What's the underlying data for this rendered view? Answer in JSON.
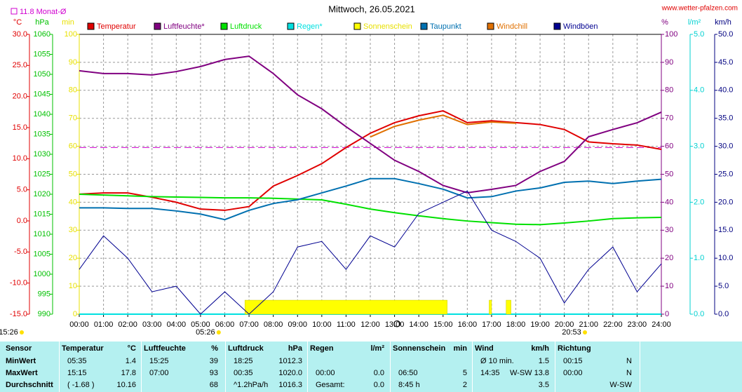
{
  "chart_data": {
    "type": "line",
    "title": "Mittwoch, 26.05.2021",
    "source": "www.wetter-pfalzen.com",
    "monthly_avg": {
      "label": "11.8 Monat-Ø",
      "value": 11.8,
      "axis": "temp",
      "color": "#d000d0"
    },
    "grid": true,
    "grid_axis": "min",
    "xlim": [
      0,
      24
    ],
    "xticks": [
      {
        "value": 0,
        "label": "00:00"
      },
      {
        "value": 1,
        "label": "01:00"
      },
      {
        "value": 2,
        "label": "02:00"
      },
      {
        "value": 3,
        "label": "03:00"
      },
      {
        "value": 4,
        "label": "04:00"
      },
      {
        "value": 5,
        "label": "05:00"
      },
      {
        "value": 6,
        "label": "06:00"
      },
      {
        "value": 7,
        "label": "07:00"
      },
      {
        "value": 8,
        "label": "08:00"
      },
      {
        "value": 9,
        "label": "09:00"
      },
      {
        "value": 10,
        "label": "10:00"
      },
      {
        "value": 11,
        "label": "11:00"
      },
      {
        "value": 12,
        "label": "12:00"
      },
      {
        "value": 13,
        "label": "13:00"
      },
      {
        "value": 14,
        "label": "14:00"
      },
      {
        "value": 15,
        "label": "15:00"
      },
      {
        "value": 16,
        "label": "16:00"
      },
      {
        "value": 17,
        "label": "17:00"
      },
      {
        "value": 18,
        "label": "18:00"
      },
      {
        "value": 19,
        "label": "19:00"
      },
      {
        "value": 20,
        "label": "20:00"
      },
      {
        "value": 21,
        "label": "21:00"
      },
      {
        "value": 22,
        "label": "22:00"
      },
      {
        "value": 23,
        "label": "23:00"
      },
      {
        "value": 24,
        "label": "24:00"
      }
    ],
    "x": [
      0,
      1,
      2,
      3,
      4,
      5,
      6,
      7,
      8,
      9,
      10,
      11,
      12,
      13,
      14,
      15,
      16,
      17,
      18,
      19,
      20,
      21,
      22,
      23,
      24
    ],
    "axes": {
      "temp": {
        "label": "°C",
        "color": "#e00000",
        "lim": [
          -15,
          30
        ],
        "ticks": [
          {
            "value": 30,
            "label": "30.0"
          },
          {
            "value": 25,
            "label": "25.0"
          },
          {
            "value": 20,
            "label": "20.0"
          },
          {
            "value": 15,
            "label": "15.0"
          },
          {
            "value": 10,
            "label": "10.0"
          },
          {
            "value": 5,
            "label": "5.0"
          },
          {
            "value": 0,
            "label": "0.0"
          },
          {
            "value": -5,
            "label": "-5.0"
          },
          {
            "value": -10,
            "label": "-10.0"
          },
          {
            "value": -15,
            "label": "-15.0"
          }
        ]
      },
      "pressure": {
        "label": "hPa",
        "color": "#00c000",
        "lim": [
          990,
          1060
        ],
        "ticks": [
          1060,
          1055,
          1050,
          1045,
          1040,
          1035,
          1030,
          1025,
          1020,
          1015,
          1010,
          1005,
          1000,
          995,
          990
        ]
      },
      "min": {
        "label": "min",
        "color": "#e8e000",
        "lim": [
          0,
          100
        ],
        "ticks": [
          100,
          90,
          80,
          70,
          60,
          50,
          40,
          30,
          20,
          10,
          0
        ]
      },
      "humidity": {
        "label": "%",
        "color": "#800080",
        "lim": [
          0,
          100
        ],
        "ticks": [
          100,
          90,
          80,
          70,
          60,
          50,
          40,
          30,
          20,
          10,
          0
        ]
      },
      "rain": {
        "label": "l/m²",
        "color": "#00d0d0",
        "lim": [
          0,
          5
        ],
        "ticks": [
          {
            "value": 5,
            "label": "5.0"
          },
          {
            "value": 4,
            "label": "4.0"
          },
          {
            "value": 3,
            "label": "3.0"
          },
          {
            "value": 2,
            "label": "2.0"
          },
          {
            "value": 1,
            "label": "1.0"
          },
          {
            "value": 0,
            "label": "0.0"
          }
        ]
      },
      "wind": {
        "label": "km/h",
        "color": "#000080",
        "lim": [
          0,
          50
        ],
        "ticks": [
          {
            "value": 50,
            "label": "50.0"
          },
          {
            "value": 45,
            "label": "45.0"
          },
          {
            "value": 40,
            "label": "40.0"
          },
          {
            "value": 35,
            "label": "35.0"
          },
          {
            "value": 30,
            "label": "30.0"
          },
          {
            "value": 25,
            "label": "25.0"
          },
          {
            "value": 20,
            "label": "20.0"
          },
          {
            "value": 15,
            "label": "15.0"
          },
          {
            "value": 10,
            "label": "10.0"
          },
          {
            "value": 5,
            "label": "5.0"
          },
          {
            "value": 0,
            "label": "0.0"
          }
        ]
      }
    },
    "series": [
      {
        "name": "Temperatur",
        "color": "#e00000",
        "axis": "temp",
        "values": [
          4.3,
          4.5,
          4.5,
          3.8,
          3.0,
          1.9,
          1.7,
          2.3,
          5.6,
          7.3,
          9.2,
          11.8,
          14.1,
          15.8,
          16.9,
          17.7,
          15.8,
          16.1,
          15.8,
          15.5,
          14.7,
          12.7,
          12.4,
          12.2,
          11.5
        ]
      },
      {
        "name": "Luftfeuchte*",
        "color": "#800080",
        "axis": "humidity",
        "values": [
          87,
          86,
          86,
          85.5,
          86.7,
          88.5,
          91,
          92.2,
          86,
          78.4,
          73.4,
          67,
          61,
          55,
          51,
          46,
          43.4,
          44.6,
          46,
          51,
          54.6,
          63.4,
          66,
          68.4,
          72.2
        ]
      },
      {
        "name": "Luftdruck",
        "color": "#00e000",
        "axis": "pressure",
        "values": [
          1020,
          1019.8,
          1019.6,
          1019.4,
          1019.3,
          1019.2,
          1019.1,
          1019.1,
          1019,
          1018.8,
          1018.6,
          1017.5,
          1016.3,
          1015.4,
          1014.6,
          1013.9,
          1013.3,
          1012.9,
          1012.5,
          1012.4,
          1012.8,
          1013.3,
          1013.9,
          1014.1,
          1014.2
        ]
      },
      {
        "name": "Regen*",
        "color": "#00e0e0",
        "axis": "rain",
        "values": [
          0,
          0,
          0,
          0,
          0,
          0,
          0,
          0,
          0,
          0,
          0,
          0,
          0,
          0,
          0,
          0,
          0,
          0,
          0,
          0,
          0,
          0,
          0,
          0,
          0
        ]
      },
      {
        "name": "Sonnenschein",
        "color": "#ffff00",
        "axis": "min",
        "periods": [
          {
            "start": 6.83,
            "end": 15.17,
            "value": 5
          },
          {
            "start": 16.9,
            "end": 17.0,
            "value": 5
          },
          {
            "start": 17.6,
            "end": 17.8,
            "value": 5
          }
        ]
      },
      {
        "name": "Taupunkt",
        "color": "#0070b0",
        "axis": "temp",
        "values": [
          2.1,
          2.1,
          2.0,
          2.0,
          1.6,
          1.1,
          0.2,
          1.7,
          2.8,
          3.4,
          4.5,
          5.6,
          6.8,
          6.8,
          6.0,
          5.1,
          3.7,
          3.9,
          4.8,
          5.3,
          6.2,
          6.4,
          6.0,
          6.4,
          6.7
        ]
      },
      {
        "name": "Windchill",
        "color": "#e07000",
        "axis": "temp",
        "values": [
          null,
          null,
          null,
          null,
          null,
          null,
          null,
          null,
          null,
          null,
          null,
          null,
          13.5,
          15.2,
          16.2,
          17.0,
          15.5,
          15.9,
          15.7,
          null,
          null,
          null,
          null,
          null,
          null
        ]
      },
      {
        "name": "Windböen",
        "color": "#000090",
        "axis": "wind",
        "values": [
          8,
          14,
          10,
          4,
          5,
          0,
          4,
          0,
          4,
          12,
          13,
          8,
          14,
          12,
          18,
          20,
          22,
          15,
          13,
          10,
          2,
          8,
          12,
          4,
          9
        ]
      }
    ],
    "annotations": [
      {
        "label": "15:26",
        "x": -3.1
      },
      {
        "label": "05:26",
        "x": 5.2
      },
      {
        "label": "O",
        "x": 13.1
      },
      {
        "label": "20:53",
        "x": 20.3
      }
    ]
  },
  "table": {
    "header": "Sensor",
    "columns": [
      {
        "name": "Temperatur",
        "unit": "°C"
      },
      {
        "name": "Luftfeuchte",
        "unit": "%"
      },
      {
        "name": "Luftdruck",
        "unit": "hPa"
      },
      {
        "name": "Regen",
        "unit": "l/m²"
      },
      {
        "name": "Sonnenschein",
        "unit": "min"
      },
      {
        "name": "Wind",
        "unit": "km/h"
      },
      {
        "name": "Richtung"
      }
    ],
    "rows": [
      {
        "label": "MinWert",
        "cells": [
          [
            "05:35",
            "1.4"
          ],
          [
            "15:25",
            "39"
          ],
          [
            "18:25",
            "1012.3"
          ],
          [],
          [],
          [
            "Ø 10 min.",
            "1.5"
          ],
          [
            "00:15",
            "N"
          ]
        ]
      },
      {
        "label": "MaxWert",
        "cells": [
          [
            "15:15",
            "17.8"
          ],
          [
            "07:00",
            "93"
          ],
          [
            "00:35",
            "1020.0"
          ],
          [
            "00:00",
            "0.0"
          ],
          [
            "06:50",
            "5"
          ],
          [
            "14:35",
            "W-SW 13.8"
          ],
          [
            "00:00",
            "N"
          ]
        ]
      },
      {
        "label": "Durchschnitt",
        "cells": [
          [
            "( -1.68 )",
            "10.16"
          ],
          [
            "68"
          ],
          [
            "^1.2hPa/h",
            "1016.3"
          ],
          [
            "Gesamt:",
            "0.0"
          ],
          [
            "8:45 h",
            "2"
          ],
          [
            "3.5"
          ],
          [
            "W-SW"
          ]
        ]
      }
    ]
  }
}
